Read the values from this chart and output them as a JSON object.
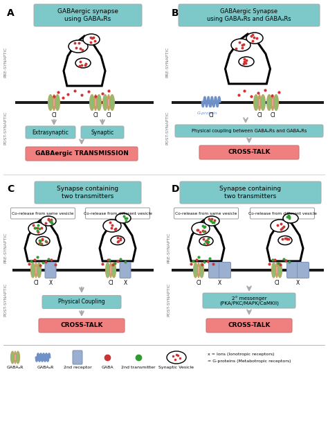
{
  "title_A": "GABAergic synapse\nusing GABAₐRs",
  "title_B": "GABAergic Synapse\nusing GABAₐRs and GABAₐRs",
  "title_C": "Synapse containing\ntwo transmitters",
  "title_D": "Synapse containing\ntwo transmitters",
  "result_A": "GABAergic TRANSMISSION",
  "result_B": "CROSS-TALK",
  "result_C": "CROSS-TALK",
  "result_D": "CROSS-TALK",
  "coupling_text_B": "Physical coupling between GABAₐRs and GABAₐRs",
  "physical_coupling_C": "Physical Coupling",
  "messenger_D": "2° messenger\n(PKA/PKC/MAPK/CaMKII)",
  "extrasynaptic_label": "Extrasynaptic",
  "synaptic_label": "Synaptic",
  "g_protein_label": "G-protein",
  "co_same": "Co-release from same vesicle",
  "co_diff": "Co-release from different vesicle",
  "pre_label": "PRE-SYNAPTIC",
  "post_label": "POST-SYNAPTIC",
  "box_cyan": "#7DC8C8",
  "box_pink": "#F08080",
  "bg": "#FFFFFF",
  "mem_color": "#1A1A1A",
  "gaba_dot": "#CC3333",
  "t2_dot": "#339933",
  "rec_green": "#8FBC6F",
  "rec_olive": "#C4A060",
  "rec_pink": "#E8A0A0",
  "rec_b_blue": "#7090C8",
  "rec_2nd": "#9BAFD0",
  "rec_2nd_edge": "#7A90B8",
  "arrow_col": "#AAAAAA",
  "label_col": "#777777",
  "legend_items": [
    "GABAₐR",
    "GABAₐR",
    "2nd receptor",
    "GABA",
    "2nd transmitter",
    "Synaptic Vesicle"
  ],
  "legend_note1": "x = Ions (Ionotropic receptors)",
  "legend_note2": "= G-proteins (Metabotropic receptors)"
}
